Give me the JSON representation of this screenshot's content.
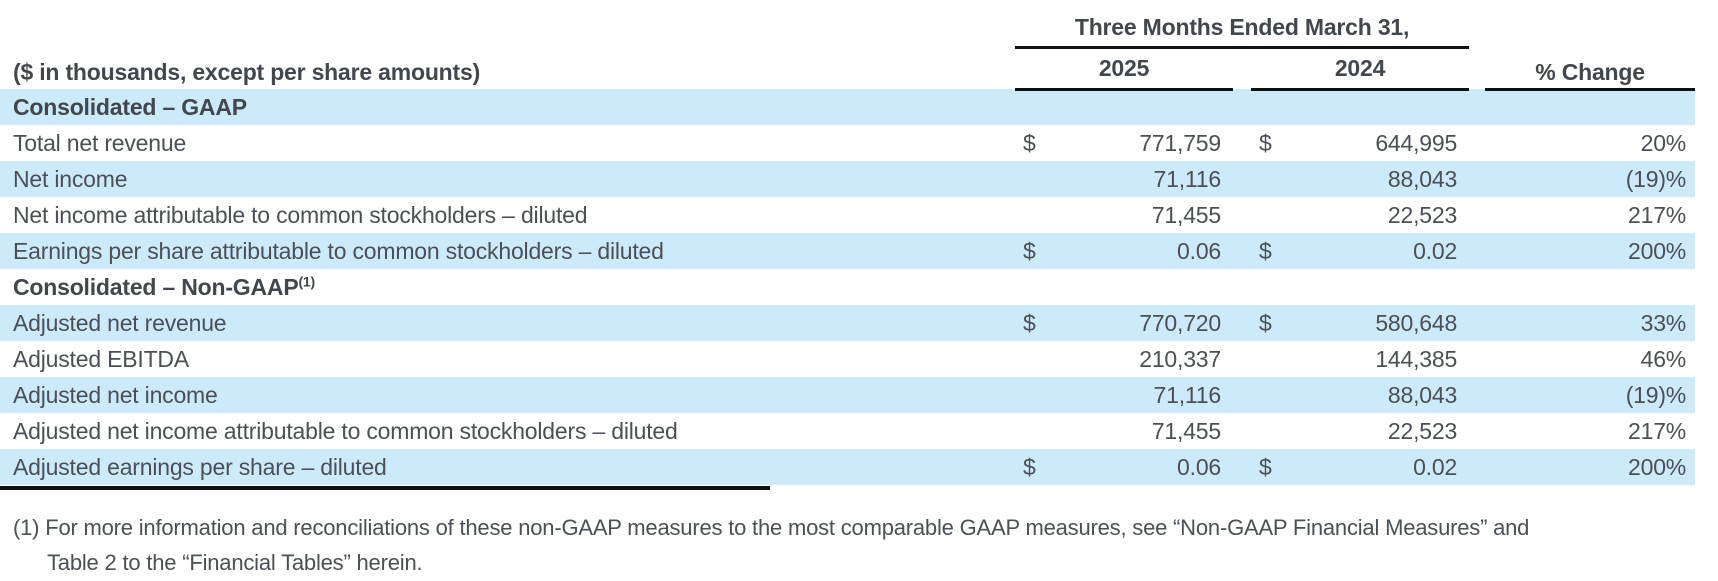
{
  "header": {
    "span_title": "Three Months Ended March 31,",
    "units_label": "($ in thousands, except per share amounts)",
    "col_2025": "2025",
    "col_2024": "2024",
    "col_change": "% Change"
  },
  "table": {
    "rows": [
      {
        "label": "Consolidated – GAAP"
      },
      {
        "label": "Total net revenue",
        "d1": "$",
        "v1": "771,759",
        "d2": "$",
        "v2": "644,995",
        "pct": "20%"
      },
      {
        "label": "Net income",
        "v1": "71,116",
        "v2": "88,043",
        "pct": "(19)%"
      },
      {
        "label": "Net income attributable to common stockholders – diluted",
        "v1": "71,455",
        "v2": "22,523",
        "pct": "217%"
      },
      {
        "label": "Earnings per share attributable to common stockholders – diluted",
        "d1": "$",
        "v1": "0.06",
        "d2": "$",
        "v2": "0.02",
        "pct": "200%"
      },
      {
        "label": "Consolidated – Non-GAAP",
        "sup": "(1)"
      },
      {
        "label": "Adjusted net revenue",
        "d1": "$",
        "v1": "770,720",
        "d2": "$",
        "v2": "580,648",
        "pct": "33%"
      },
      {
        "label": "Adjusted EBITDA",
        "v1": "210,337",
        "v2": "144,385",
        "pct": "46%"
      },
      {
        "label": "Adjusted net income",
        "v1": "71,116",
        "v2": "88,043",
        "pct": "(19)%"
      },
      {
        "label": "Adjusted net income attributable to common stockholders – diluted",
        "v1": "71,455",
        "v2": "22,523",
        "pct": "217%"
      },
      {
        "label": "Adjusted earnings per share – diluted",
        "d1": "$",
        "v1": "0.06",
        "d2": "$",
        "v2": "0.02",
        "pct": "200%"
      }
    ]
  },
  "footnote": {
    "lines": [
      "(1) For more information and reconciliations of these non-GAAP measures to the most comparable GAAP measures, see “Non-GAAP Financial Measures” and",
      "Table 2 to the “Financial Tables” herein."
    ]
  },
  "colors": {
    "row_highlight": "#cdeafb",
    "text": "#4b5056",
    "rule": "#101010"
  }
}
